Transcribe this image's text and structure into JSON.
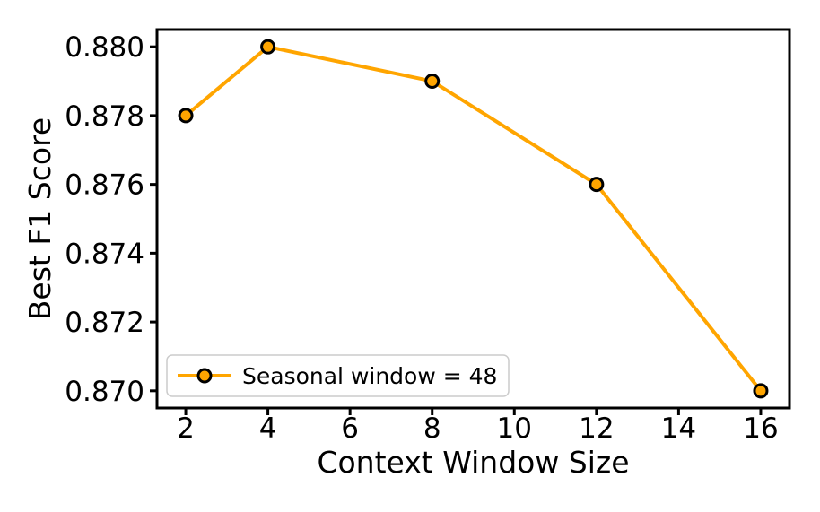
{
  "chart_data": {
    "type": "line",
    "title": "",
    "xlabel": "Context Window Size",
    "ylabel": "Best F1 Score",
    "series": [
      {
        "name": "Seasonal window = 48",
        "x": [
          2,
          4,
          8,
          12,
          16
        ],
        "y": [
          0.878,
          0.88,
          0.879,
          0.876,
          0.87
        ],
        "line_color": "#FFA500",
        "marker_fill": "#FFA500",
        "marker_edge": "#000000"
      }
    ],
    "xlim": [
      1.3,
      16.7
    ],
    "ylim": [
      0.8695,
      0.8805
    ],
    "xticks": [
      2,
      4,
      6,
      8,
      10,
      12,
      14,
      16
    ],
    "xtick_labels": [
      "2",
      "4",
      "6",
      "8",
      "10",
      "12",
      "14",
      "16"
    ],
    "yticks": [
      0.87,
      0.872,
      0.874,
      0.876,
      0.878,
      0.88
    ],
    "ytick_labels": [
      "0.870",
      "0.872",
      "0.874",
      "0.876",
      "0.878",
      "0.880"
    ],
    "grid": false,
    "legend_position": "lower left",
    "legend_entries": [
      "Seasonal window = 48"
    ],
    "axis_color": "#000000",
    "background": "#ffffff",
    "legend_border_color": "#cccccc"
  }
}
